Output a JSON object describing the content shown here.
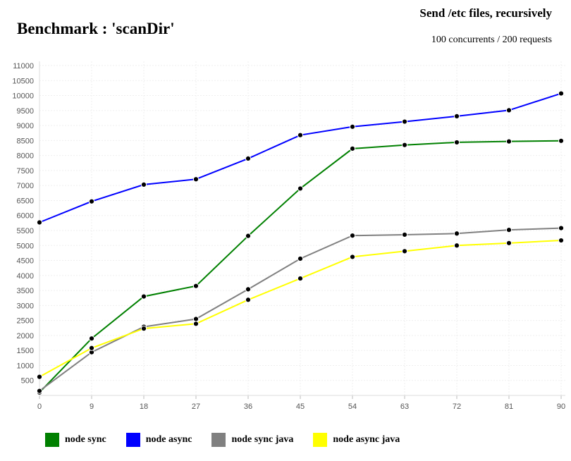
{
  "chart_data": {
    "type": "line",
    "title": "Benchmark : 'scanDir'",
    "subtitle": "Send /etc files, recursively",
    "subtitle2": "100 concurrents / 200 requests",
    "x": [
      0,
      9,
      18,
      27,
      36,
      45,
      54,
      63,
      72,
      81,
      90
    ],
    "xticks": [
      "0",
      "9",
      "18",
      "27",
      "36",
      "45",
      "54",
      "63",
      "72",
      "81",
      "90"
    ],
    "xlim": [
      0,
      90
    ],
    "ylim": [
      0,
      11000
    ],
    "yticks": [
      500,
      1000,
      1500,
      2000,
      2500,
      3000,
      3500,
      4000,
      4500,
      5000,
      5500,
      6000,
      6500,
      7000,
      7500,
      8000,
      8500,
      9000,
      9500,
      10000,
      10500,
      11000
    ],
    "grid": true,
    "legend_position": "bottom",
    "series": [
      {
        "name": "node sync",
        "color": "#008000",
        "values": [
          100,
          1900,
          3300,
          3650,
          5320,
          6900,
          8230,
          8350,
          8440,
          8470,
          8490
        ]
      },
      {
        "name": "node async",
        "color": "#0000ff",
        "values": [
          5770,
          6470,
          7030,
          7210,
          7900,
          8680,
          8960,
          9130,
          9310,
          9510,
          10070
        ]
      },
      {
        "name": "node sync java",
        "color": "#808080",
        "values": [
          150,
          1440,
          2290,
          2550,
          3540,
          4560,
          5330,
          5360,
          5400,
          5520,
          5580
        ]
      },
      {
        "name": "node async java",
        "color": "#ffff00",
        "values": [
          620,
          1580,
          2230,
          2390,
          3190,
          3900,
          4620,
          4810,
          5000,
          5080,
          5170
        ]
      }
    ]
  }
}
